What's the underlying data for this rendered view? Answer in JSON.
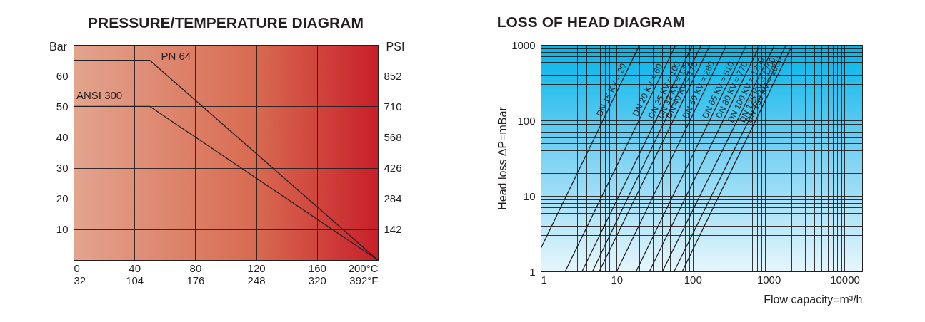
{
  "chart_data": [
    {
      "type": "line",
      "title": "PRESSURE/TEMPERATURE DIAGRAM",
      "ylabel": "Bar",
      "y2label": "PSI",
      "grid": true,
      "xlim": [
        0,
        200
      ],
      "xticks": [
        0,
        40,
        80,
        120,
        160,
        {
          "value": 200,
          "label": "200°C"
        }
      ],
      "x2lim": [
        32,
        392
      ],
      "x2ticks": [
        32,
        104,
        176,
        248,
        320,
        {
          "value": 392,
          "label": "392°F"
        }
      ],
      "ylim": [
        0,
        70
      ],
      "yticks": [
        10,
        20,
        30,
        40,
        50,
        60
      ],
      "y2lim": [
        0,
        994
      ],
      "y2ticks": [
        142,
        284,
        426,
        568,
        710,
        852
      ],
      "series": [
        {
          "name": "PN 64",
          "color": "#231f20",
          "x": [
            0,
            50,
            200
          ],
          "values": [
            65,
            65,
            0
          ]
        },
        {
          "name": "ANSI 300",
          "color": "#231f20",
          "x": [
            0,
            50,
            200
          ],
          "values": [
            50,
            50,
            0
          ]
        }
      ]
    },
    {
      "type": "line",
      "title": "LOSS OF HEAD DIAGRAM",
      "xlabel": "Flow capacity=m³/h",
      "ylabel": "Head loss  ΔP=mBar",
      "grid": true,
      "log": "xy",
      "xlim": [
        1,
        17000
      ],
      "xticks": [
        1,
        {
          "value": 2,
          "label": null
        },
        {
          "value": 3,
          "label": null
        },
        {
          "value": 4,
          "label": null
        },
        {
          "value": 5,
          "label": null
        },
        {
          "value": 6,
          "label": null
        },
        {
          "value": 7,
          "label": null
        },
        {
          "value": 8,
          "label": null
        },
        {
          "value": 9,
          "label": null
        },
        10,
        {
          "value": 20,
          "label": null
        },
        {
          "value": 30,
          "label": null
        },
        {
          "value": 40,
          "label": null
        },
        {
          "value": 50,
          "label": null
        },
        {
          "value": 60,
          "label": null
        },
        {
          "value": 70,
          "label": null
        },
        {
          "value": 80,
          "label": null
        },
        {
          "value": 90,
          "label": null
        },
        100,
        {
          "value": 200,
          "label": null
        },
        {
          "value": 300,
          "label": null
        },
        {
          "value": 400,
          "label": null
        },
        {
          "value": 500,
          "label": null
        },
        {
          "value": 600,
          "label": null
        },
        {
          "value": 700,
          "label": null
        },
        {
          "value": 800,
          "label": null
        },
        {
          "value": 900,
          "label": null
        },
        1000,
        {
          "value": 2000,
          "label": null
        },
        {
          "value": 3000,
          "label": null
        },
        {
          "value": 4000,
          "label": null
        },
        {
          "value": 5000,
          "label": null
        },
        {
          "value": 6000,
          "label": null
        },
        {
          "value": 7000,
          "label": null
        },
        {
          "value": 8000,
          "label": null
        },
        {
          "value": 9000,
          "label": null
        },
        10000
      ],
      "ylim": [
        1,
        1000
      ],
      "yticks": [
        1,
        {
          "value": 2,
          "label": null
        },
        {
          "value": 3,
          "label": null
        },
        {
          "value": 4,
          "label": null
        },
        {
          "value": 5,
          "label": null
        },
        {
          "value": 6,
          "label": null
        },
        {
          "value": 7,
          "label": null
        },
        {
          "value": 8,
          "label": null
        },
        {
          "value": 9,
          "label": null
        },
        10,
        {
          "value": 20,
          "label": null
        },
        {
          "value": 30,
          "label": null
        },
        {
          "value": 40,
          "label": null
        },
        {
          "value": 50,
          "label": null
        },
        {
          "value": 60,
          "label": null
        },
        {
          "value": 70,
          "label": null
        },
        {
          "value": 80,
          "label": null
        },
        {
          "value": 90,
          "label": null
        },
        100,
        {
          "value": 200,
          "label": null
        },
        {
          "value": 300,
          "label": null
        },
        {
          "value": 400,
          "label": null
        },
        {
          "value": 500,
          "label": null
        },
        {
          "value": 600,
          "label": null
        },
        {
          "value": 700,
          "label": null
        },
        {
          "value": 800,
          "label": null
        },
        {
          "value": 900,
          "label": null
        },
        1000
      ],
      "series": [
        {
          "name": "DN 15 KV = 20",
          "color": "#231f20",
          "x": [
            1,
            20
          ],
          "values": [
            2,
            1000
          ]
        },
        {
          "name": "DN 20 KV = 60",
          "color": "#231f20",
          "x": [
            2.1,
            60
          ],
          "values": [
            1,
            1000
          ]
        },
        {
          "name": "DN 25 KV = 100",
          "color": "#231f20",
          "x": [
            3.5,
            100
          ],
          "values": [
            1,
            1000
          ]
        },
        {
          "name": "DN 32 KV = 130",
          "color": "#231f20",
          "x": [
            4.8,
            130
          ],
          "values": [
            1,
            1000
          ]
        },
        {
          "name": "DN 40 KV = 170",
          "color": "#231f20",
          "x": [
            5.9,
            170
          ],
          "values": [
            1,
            1000
          ]
        },
        {
          "name": "DN 50 KV = 280",
          "color": "#231f20",
          "x": [
            10,
            280
          ],
          "values": [
            1,
            1000
          ]
        },
        {
          "name": "DN 65 KV = 510",
          "color": "#231f20",
          "x": [
            18,
            510
          ],
          "values": [
            1,
            1000
          ]
        },
        {
          "name": "DN 80 KV = 770",
          "color": "#231f20",
          "x": [
            27,
            770
          ],
          "values": [
            1,
            1000
          ]
        },
        {
          "name": "DN 100 KV = 1200",
          "color": "#231f20",
          "x": [
            40,
            1200
          ],
          "values": [
            1,
            1000
          ]
        },
        {
          "name": "DN 125 KV = 1700",
          "color": "#231f20",
          "x": [
            57,
            1700
          ],
          "values": [
            1,
            1000
          ]
        },
        {
          "name": "DN 150 KV = 2050",
          "color": "#231f20",
          "x": [
            73,
            2050
          ],
          "values": [
            1,
            1000
          ]
        }
      ]
    }
  ]
}
